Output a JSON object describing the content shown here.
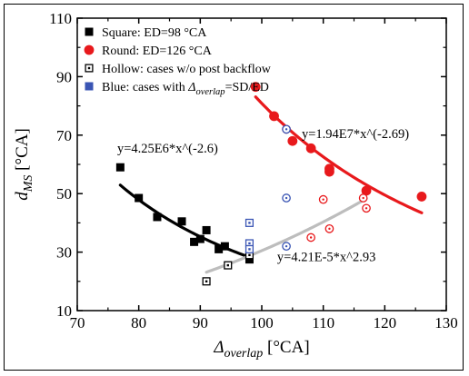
{
  "chart_data": {
    "type": "scatter",
    "xlabel": {
      "symbol": "Δ",
      "sub": "overlap",
      "unit": " [°CA]"
    },
    "ylabel": {
      "symbol": "d",
      "sub": "MS",
      "unit": " [°CA]"
    },
    "xlim": [
      70,
      130
    ],
    "ylim": [
      10,
      110
    ],
    "xticks": [
      70,
      80,
      90,
      100,
      110,
      120,
      130
    ],
    "yticks": [
      10,
      30,
      50,
      70,
      90,
      110
    ],
    "legend": {
      "placement": "top-left",
      "entries": [
        {
          "marker": "filled-square",
          "color": "#000000",
          "label": "Square: ED=98 °CA"
        },
        {
          "marker": "filled-circle",
          "color": "#e8191c",
          "label": "Round: ED=126 °CA"
        },
        {
          "marker": "hollow-square",
          "color": "#000000",
          "label": "Hollow: cases w/o post backflow"
        },
        {
          "marker": "filled-square",
          "color": "#3a55b4",
          "label_parts": [
            "Blue: cases with ",
            "Δ",
            "overlap",
            "=SD/ED"
          ]
        }
      ]
    },
    "series": [
      {
        "name": "Square: ED=98 °CA",
        "marker": "filled-square",
        "color": "#000000",
        "points": [
          [
            77,
            59
          ],
          [
            80,
            48.5
          ],
          [
            83,
            42
          ],
          [
            87,
            40.5
          ],
          [
            89,
            33.5
          ],
          [
            90,
            34.5
          ],
          [
            91,
            37.5
          ],
          [
            93,
            31
          ],
          [
            94,
            32
          ],
          [
            98,
            27.5
          ]
        ]
      },
      {
        "name": "Round: ED=126 °CA",
        "marker": "filled-circle",
        "color": "#e8191c",
        "points": [
          [
            99,
            86.5
          ],
          [
            102,
            76.5
          ],
          [
            105,
            68
          ],
          [
            108,
            65.5
          ],
          [
            111,
            57.5
          ],
          [
            111,
            58.5
          ],
          [
            117,
            51
          ],
          [
            126,
            49
          ]
        ]
      },
      {
        "name": "Hollow: cases w/o post backflow (square)",
        "marker": "hollow-square",
        "color": "#000000",
        "points": [
          [
            91,
            20
          ],
          [
            94.5,
            25.5
          ],
          [
            98,
            29
          ]
        ]
      },
      {
        "name": "Blue: cases with Δoverlap=SD/ED (square)",
        "marker": "hollow-square",
        "color": "#3a55b4",
        "points": [
          [
            98,
            40
          ],
          [
            98,
            33
          ],
          [
            98,
            31
          ]
        ]
      },
      {
        "name": "Hollow: cases w/o post backflow (round)",
        "marker": "hollow-circle",
        "color": "#e8191c",
        "points": [
          [
            104,
            72
          ],
          [
            108,
            35
          ],
          [
            110,
            48
          ],
          [
            111,
            38
          ],
          [
            116.5,
            48.5
          ],
          [
            117,
            45
          ]
        ]
      },
      {
        "name": "Blue: cases with Δoverlap=SD/ED (round)",
        "marker": "hollow-circle",
        "color": "#3a55b4",
        "points": [
          [
            104,
            72
          ],
          [
            104,
            48.5
          ],
          [
            104,
            32
          ]
        ]
      }
    ],
    "fits": [
      {
        "label": "y=4.25E6*x^(-2.6)",
        "a": 4250000.0,
        "b": -2.6,
        "x_range": [
          77,
          98
        ],
        "color": "#000000",
        "label_anchor": [
          76.5,
          64
        ]
      },
      {
        "label": "y=1.94E7*x^(-2.69)",
        "a": 19400000.0,
        "b": -2.69,
        "x_range": [
          99,
          126
        ],
        "color": "#e8191c",
        "label_anchor": [
          106.5,
          69
        ]
      },
      {
        "label": "y=4.21E-5*x^2.93",
        "a": 4.21e-05,
        "b": 2.93,
        "x_range": [
          91,
          117
        ],
        "color": "#bdbdbd",
        "label_anchor": [
          102.5,
          27
        ]
      }
    ]
  }
}
